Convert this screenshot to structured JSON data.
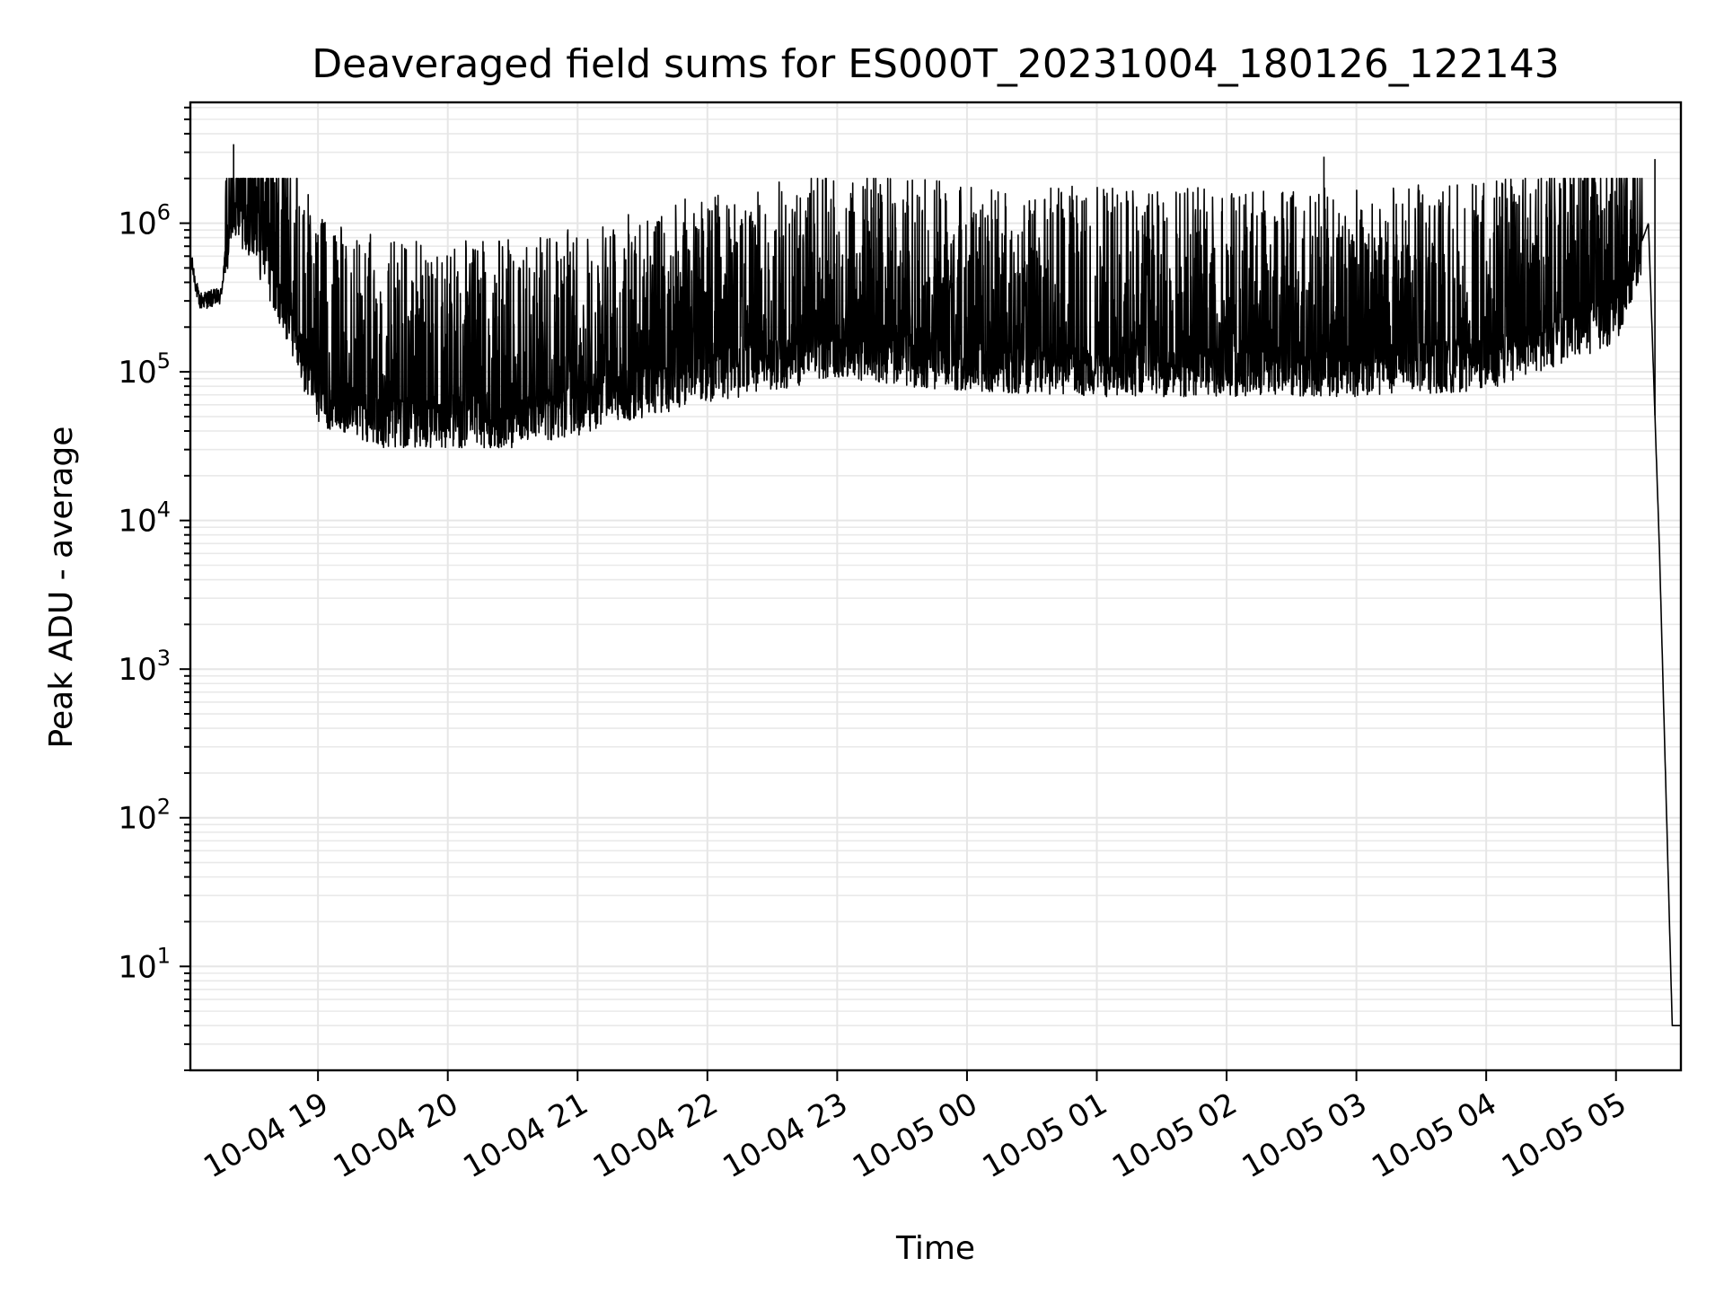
{
  "chart_data": {
    "type": "line",
    "title": "Deaveraged field sums for ES000T_20231004_180126_122143",
    "xlabel": "Time",
    "ylabel": "Peak ADU - average",
    "yscale": "log",
    "grid": true,
    "xlim": [
      "10-04 18:01",
      "10-05 05:30"
    ],
    "ylim": [
      2,
      6500000
    ],
    "x_ticks": [
      "10-04 19",
      "10-04 20",
      "10-04 21",
      "10-04 22",
      "10-04 23",
      "10-05 00",
      "10-05 01",
      "10-05 02",
      "10-05 03",
      "10-05 04",
      "10-05 05"
    ],
    "y_ticks": [
      {
        "base": "10",
        "exp": "1",
        "value": 10
      },
      {
        "base": "10",
        "exp": "2",
        "value": 100
      },
      {
        "base": "10",
        "exp": "3",
        "value": 1000
      },
      {
        "base": "10",
        "exp": "4",
        "value": 10000
      },
      {
        "base": "10",
        "exp": "5",
        "value": 100000
      },
      {
        "base": "10",
        "exp": "6",
        "value": 1000000
      }
    ],
    "series": [
      {
        "color": "#000000",
        "description_points": [
          {
            "x": "10-04 18:01",
            "y": 600000
          },
          {
            "x": "10-04 18:05",
            "y": 300000
          },
          {
            "x": "10-04 18:15",
            "y": 320000
          },
          {
            "x": "10-04 18:20",
            "y": 1300000
          },
          {
            "x": "10-04 18:30",
            "y": 900000
          },
          {
            "x": "10-04 19:00",
            "y": 70000
          },
          {
            "x": "10-04 19:30",
            "y": 50000
          },
          {
            "x": "10-04 20:00",
            "y": 50000
          },
          {
            "x": "10-04 20:30",
            "y": 50000
          },
          {
            "x": "10-04 21:00",
            "y": 60000
          },
          {
            "x": "10-04 21:30",
            "y": 80000
          },
          {
            "x": "10-04 22:00",
            "y": 100000
          },
          {
            "x": "10-04 22:30",
            "y": 120000
          },
          {
            "x": "10-04 23:00",
            "y": 150000
          },
          {
            "x": "10-04 23:30",
            "y": 130000
          },
          {
            "x": "10-05 00:00",
            "y": 120000
          },
          {
            "x": "10-05 01:00",
            "y": 110000
          },
          {
            "x": "10-05 02:00",
            "y": 110000
          },
          {
            "x": "10-05 03:00",
            "y": 110000
          },
          {
            "x": "10-05 04:00",
            "y": 120000
          },
          {
            "x": "10-05 05:00",
            "y": 250000
          },
          {
            "x": "10-05 05:15",
            "y": 1000000
          },
          {
            "x": "10-05 05:20",
            "y": 7000
          },
          {
            "x": "10-05 05:26",
            "y": 4
          },
          {
            "x": "10-05 05:30",
            "y": 4
          }
        ],
        "spikes": [
          {
            "x": "10-04 18:21",
            "y": 3400000
          },
          {
            "x": "10-05 02:45",
            "y": 2800000
          },
          {
            "x": "10-05 05:18",
            "y": 2700000
          }
        ]
      }
    ]
  }
}
